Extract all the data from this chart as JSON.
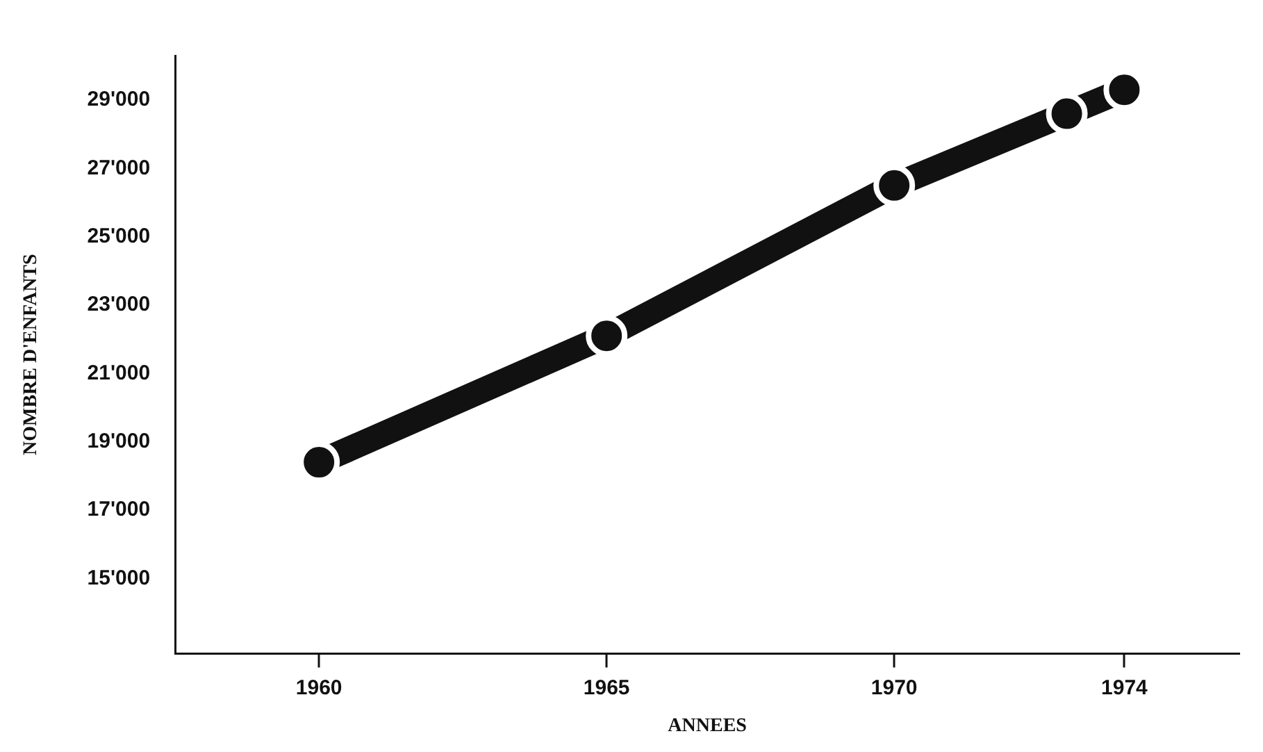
{
  "chart_data": {
    "type": "line",
    "xlabel": "ANNEES",
    "ylabel": "NOMBRE D'ENFANTS",
    "x": [
      1960,
      1965,
      1970,
      1973,
      1974
    ],
    "series": [
      {
        "color": "#111111",
        "values": [
          18400,
          22100,
          26500,
          28600,
          29300
        ]
      }
    ],
    "xlim": [
      1957.5,
      1976
    ],
    "xticks": [
      1960,
      1965,
      1970,
      1974
    ],
    "ylim": [
      12800,
      30300
    ],
    "yticks": [
      {
        "value": 15000,
        "label": "15'000"
      },
      {
        "value": 17000,
        "label": "17'000"
      },
      {
        "value": 19000,
        "label": "19'000"
      },
      {
        "value": 21000,
        "label": "21'000"
      },
      {
        "value": 23000,
        "label": "23'000"
      },
      {
        "value": 25000,
        "label": "25'000"
      },
      {
        "value": 27000,
        "label": "27'000"
      },
      {
        "value": 29000,
        "label": "29'000"
      }
    ],
    "grid": false,
    "legend": false,
    "marker": "circle",
    "line_style": "solid"
  }
}
